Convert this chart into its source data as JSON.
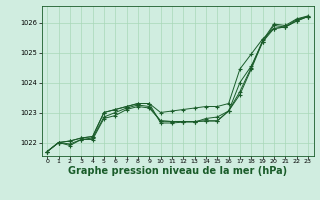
{
  "background_color": "#d0ede0",
  "grid_color": "#a8d8b8",
  "line_color": "#1a5c2a",
  "marker_color": "#1a5c2a",
  "xlabel": "Graphe pression niveau de la mer (hPa)",
  "xlabel_fontsize": 7.0,
  "xlim": [
    -0.5,
    23.5
  ],
  "ylim": [
    1021.55,
    1026.55
  ],
  "yticks": [
    1022,
    1023,
    1024,
    1025,
    1026
  ],
  "xticks": [
    0,
    1,
    2,
    3,
    4,
    5,
    6,
    7,
    8,
    9,
    10,
    11,
    12,
    13,
    14,
    15,
    16,
    17,
    18,
    19,
    20,
    21,
    22,
    23
  ],
  "series": [
    [
      1021.7,
      1022.0,
      1021.9,
      1022.1,
      1022.1,
      1022.8,
      1022.9,
      1023.1,
      1023.2,
      1023.15,
      1022.72,
      1022.7,
      1022.7,
      1022.7,
      1022.72,
      1022.72,
      1023.05,
      1023.6,
      1024.45,
      1025.35,
      1025.9,
      1025.85,
      1026.1,
      1026.2
    ],
    [
      1021.7,
      1022.0,
      1021.95,
      1022.1,
      1022.15,
      1022.85,
      1023.0,
      1023.15,
      1023.25,
      1023.2,
      1022.72,
      1022.7,
      1022.7,
      1022.7,
      1022.72,
      1022.72,
      1023.05,
      1023.7,
      1024.5,
      1025.4,
      1025.95,
      1025.9,
      1026.12,
      1026.22
    ],
    [
      1021.7,
      1022.0,
      1022.05,
      1022.15,
      1022.2,
      1023.0,
      1023.1,
      1023.2,
      1023.3,
      1023.3,
      1023.0,
      1023.05,
      1023.1,
      1023.15,
      1023.2,
      1023.2,
      1023.3,
      1024.45,
      1024.95,
      1025.45,
      1025.8,
      1025.85,
      1026.05,
      1026.2
    ],
    [
      1021.7,
      1022.0,
      1022.05,
      1022.15,
      1022.2,
      1023.0,
      1023.1,
      1023.2,
      1023.3,
      1023.3,
      1022.65,
      1022.65,
      1022.68,
      1022.68,
      1022.8,
      1022.85,
      1023.05,
      1024.0,
      1024.55,
      1025.35,
      1025.8,
      1025.85,
      1026.05,
      1026.2
    ]
  ]
}
